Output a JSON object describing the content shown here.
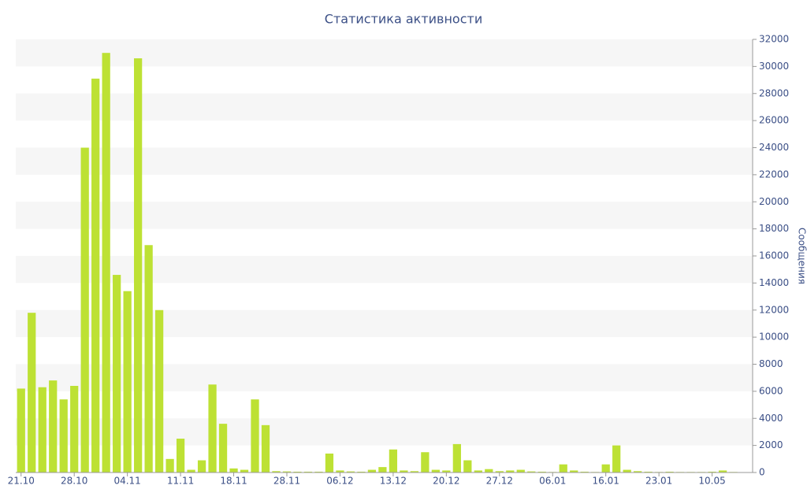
{
  "chart_data": {
    "type": "bar",
    "title": "Статистика активности",
    "y_axis_label": "Сообщения",
    "categories": [
      "21.10",
      null,
      null,
      null,
      null,
      "28.10",
      null,
      null,
      null,
      null,
      "04.11",
      null,
      null,
      null,
      null,
      "11.11",
      null,
      null,
      null,
      null,
      "18.11",
      null,
      null,
      null,
      null,
      "28.11",
      null,
      null,
      null,
      null,
      "06.12",
      null,
      null,
      null,
      null,
      "13.12",
      null,
      null,
      null,
      null,
      "20.12",
      null,
      null,
      null,
      null,
      "27.12",
      null,
      null,
      null,
      null,
      "06.01",
      null,
      null,
      null,
      null,
      "16.01",
      null,
      null,
      null,
      null,
      "23.01",
      null,
      null,
      null,
      null,
      "10.05",
      null,
      null
    ],
    "values": [
      6200,
      11800,
      6300,
      6800,
      5400,
      6400,
      24000,
      29100,
      31000,
      14600,
      13400,
      30600,
      16800,
      12000,
      1000,
      2500,
      200,
      900,
      6500,
      3600,
      300,
      200,
      5400,
      3500,
      100,
      80,
      60,
      60,
      60,
      1400,
      150,
      80,
      60,
      200,
      400,
      1700,
      150,
      100,
      1500,
      200,
      150,
      2100,
      900,
      150,
      250,
      100,
      150,
      200,
      80,
      60,
      40,
      600,
      150,
      60,
      40,
      600,
      2000,
      200,
      100,
      60,
      40,
      60,
      40,
      40,
      40,
      60,
      150,
      40
    ],
    "color": "#bde134",
    "ylim": [
      0,
      32000
    ],
    "yticks": [
      0,
      2000,
      4000,
      6000,
      8000,
      10000,
      12000,
      14000,
      16000,
      18000,
      20000,
      22000,
      24000,
      26000,
      28000,
      30000,
      32000
    ],
    "grid": true,
    "y_axis_side": "right"
  }
}
